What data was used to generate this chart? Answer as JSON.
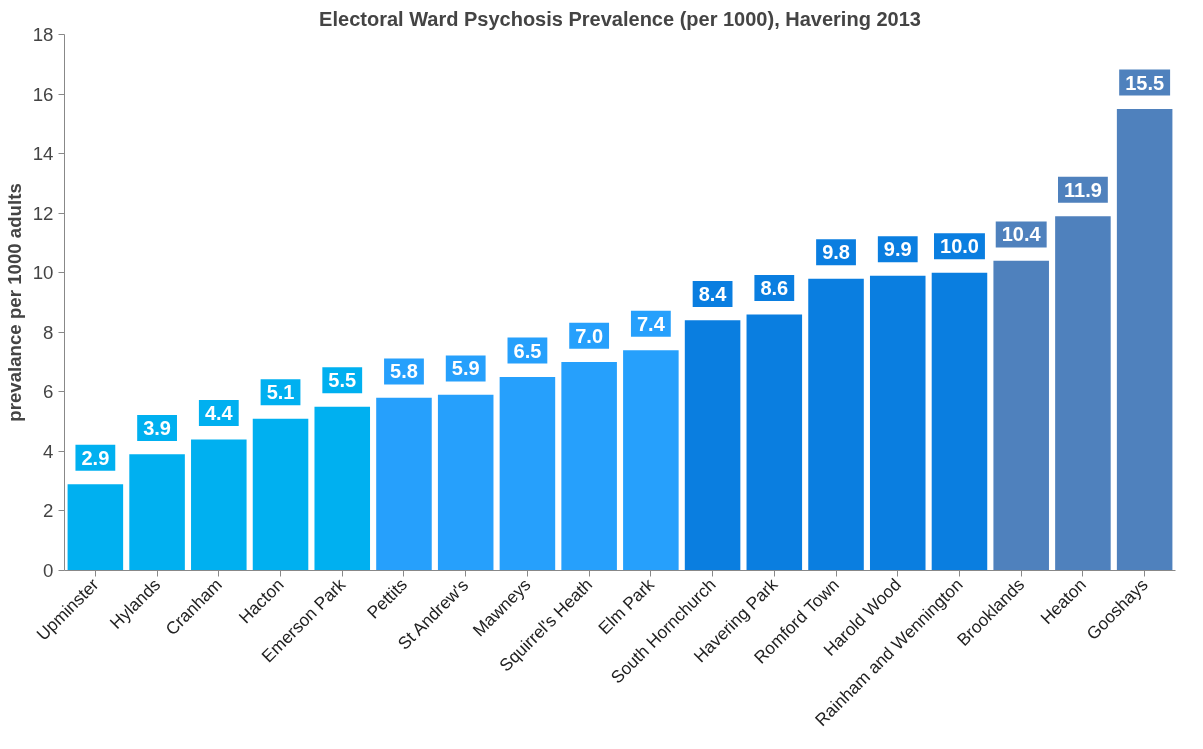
{
  "chart_data": {
    "type": "bar",
    "title": "Electoral Ward Psychosis Prevalence (per 1000), Havering 2013",
    "ylabel": "prevalance per 1000 adults",
    "categories": [
      "Upminster",
      "Hylands",
      "Cranham",
      "Hacton",
      "Emerson Park",
      "Pettits",
      "St Andrew's",
      "Mawneys",
      "Squirrel's Heath",
      "Elm Park",
      "South Hornchurch",
      "Havering Park",
      "Romford Town",
      "Harold Wood",
      "Rainham and Wennington",
      "Brooklands",
      "Heaton",
      "Gooshays"
    ],
    "values": [
      2.9,
      3.9,
      4.4,
      5.1,
      5.5,
      5.8,
      5.9,
      6.5,
      7.0,
      7.4,
      8.4,
      8.6,
      9.8,
      9.9,
      10.0,
      10.4,
      11.9,
      15.5
    ],
    "colors": [
      "#00b0f0",
      "#00b0f0",
      "#00b0f0",
      "#00b0f0",
      "#00b0f0",
      "#26a0fc",
      "#26a0fc",
      "#26a0fc",
      "#26a0fc",
      "#26a0fc",
      "#0a7ee0",
      "#0a7ee0",
      "#0a7ee0",
      "#0a7ee0",
      "#0a7ee0",
      "#4f81bd",
      "#4f81bd",
      "#4f81bd"
    ],
    "value_labels": [
      "2.9",
      "3.9",
      "4.4",
      "5.1",
      "5.5",
      "5.8",
      "5.9",
      "6.5",
      "7.0",
      "7.4",
      "8.4",
      "8.6",
      "9.8",
      "9.9",
      "10.0",
      "10.4",
      "11.9",
      "15.5"
    ],
    "ylim": [
      0,
      18
    ],
    "yticks": [
      0,
      2,
      4,
      6,
      8,
      10,
      12,
      14,
      16,
      18
    ],
    "grid": false
  }
}
